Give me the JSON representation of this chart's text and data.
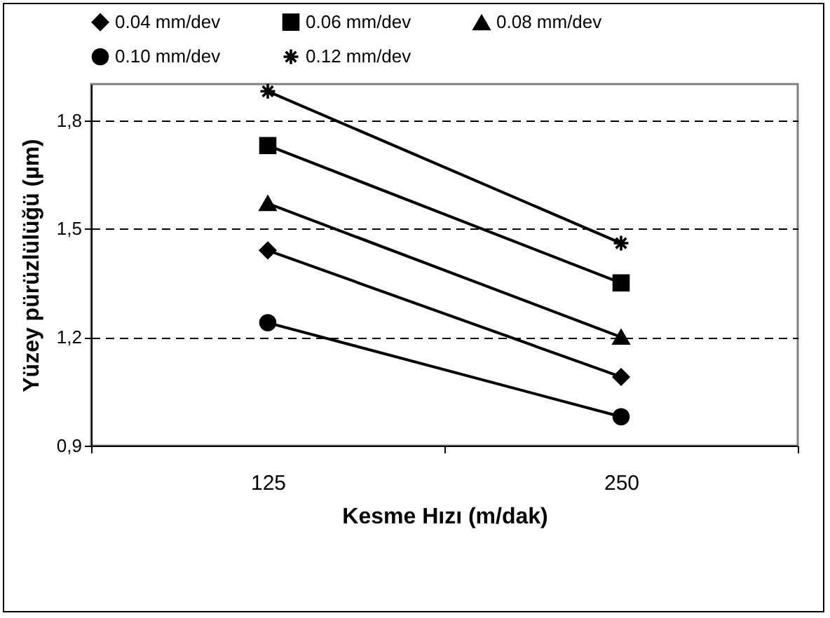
{
  "chart_data": {
    "type": "line",
    "xlabel": "Kesme Hızı (m/dak)",
    "ylabel": "Yüzey pürüzlülüğü (µm)",
    "categories": [
      "125",
      "250"
    ],
    "series": [
      {
        "name": "0.04 mm/dev",
        "color": "#000000",
        "marker": "diamond",
        "values": [
          1.44,
          1.09
        ]
      },
      {
        "name": "0.06 mm/dev",
        "color": "#000000",
        "marker": "square",
        "values": [
          1.73,
          1.35
        ]
      },
      {
        "name": "0.08 mm/dev",
        "color": "#000000",
        "marker": "triangle",
        "values": [
          1.57,
          1.2
        ]
      },
      {
        "name": "0.10 mm/dev",
        "color": "#000000",
        "marker": "circle",
        "values": [
          1.24,
          0.98
        ]
      },
      {
        "name": "0.12 mm/dev",
        "color": "#000000",
        "marker": "cross",
        "values": [
          1.88,
          1.46
        ]
      }
    ],
    "ylim": [
      0.9,
      1.9
    ],
    "yticks": [
      {
        "value": 0.9,
        "label": "0,9"
      },
      {
        "value": 1.2,
        "label": "1,2"
      },
      {
        "value": 1.5,
        "label": "1,5"
      },
      {
        "value": 1.8,
        "label": "1,8"
      }
    ],
    "grid": "y",
    "legend": "top",
    "line_style": "solid"
  }
}
